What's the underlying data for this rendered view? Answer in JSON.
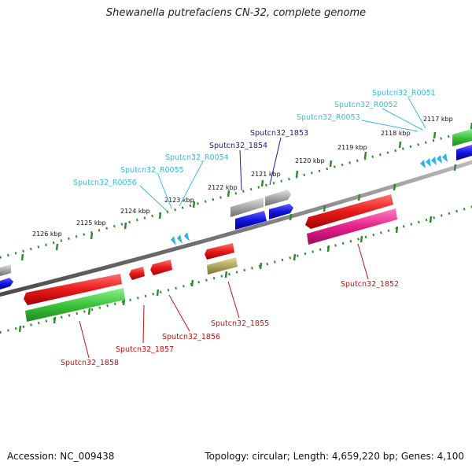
{
  "title": "Shewanella putrefaciens CN-32, complete genome",
  "footer": {
    "accession": "Accession: NC_009438",
    "topology": "Topology: circular; Length: 4,659,220 bp; Genes: 4,100"
  },
  "kbp_ticks": [
    {
      "label": "2117 kbp",
      "x": 2117
    },
    {
      "label": "2118 kbp",
      "x": 2118
    },
    {
      "label": "2119 kbp",
      "x": 2119
    },
    {
      "label": "2120 kbp",
      "x": 2120
    },
    {
      "label": "2121 kbp",
      "x": 2121
    },
    {
      "label": "2122 kbp",
      "x": 2122
    },
    {
      "label": "2123 kbp",
      "x": 2123
    },
    {
      "label": "2124 kbp",
      "x": 2124
    },
    {
      "label": "2125 kbp",
      "x": 2125
    },
    {
      "label": "2126 kbp",
      "x": 2126
    }
  ],
  "genes": [
    {
      "name": "Sputcn32_R0051",
      "color": "#3bbbd8"
    },
    {
      "name": "Sputcn32_R0052",
      "color": "#3bbbd8"
    },
    {
      "name": "Sputcn32_R0053",
      "color": "#3bbbd8"
    },
    {
      "name": "Sputcn32_1853",
      "color": "#1a1aa6"
    },
    {
      "name": "Sputcn32_1854",
      "color": "#1a1aa6"
    },
    {
      "name": "Sputcn32_R0054",
      "color": "#3bbbd8"
    },
    {
      "name": "Sputcn32_R0055",
      "color": "#3bbbd8"
    },
    {
      "name": "Sputcn32_R0056",
      "color": "#3bbbd8"
    },
    {
      "name": "Sputcn32_1852",
      "color": "#c41212"
    },
    {
      "name": "Sputcn32_1855",
      "color": "#c41212"
    },
    {
      "name": "Sputcn32_1856",
      "color": "#c41212"
    },
    {
      "name": "Sputcn32_1857",
      "color": "#c41212"
    },
    {
      "name": "Sputcn32_1858",
      "color": "#c41212"
    }
  ],
  "colors": {
    "backbone": "#7b7b7b",
    "tick_green": "#2e8b2e",
    "cds_red": "#e81a1a",
    "cds_green": "#3cc43c",
    "cds_blue": "#1414dc",
    "cds_grey": "#a8a8a8",
    "cds_pink": "#e8208a",
    "cds_olive": "#b0a660",
    "rna_cyan": "#2ab4ec"
  }
}
